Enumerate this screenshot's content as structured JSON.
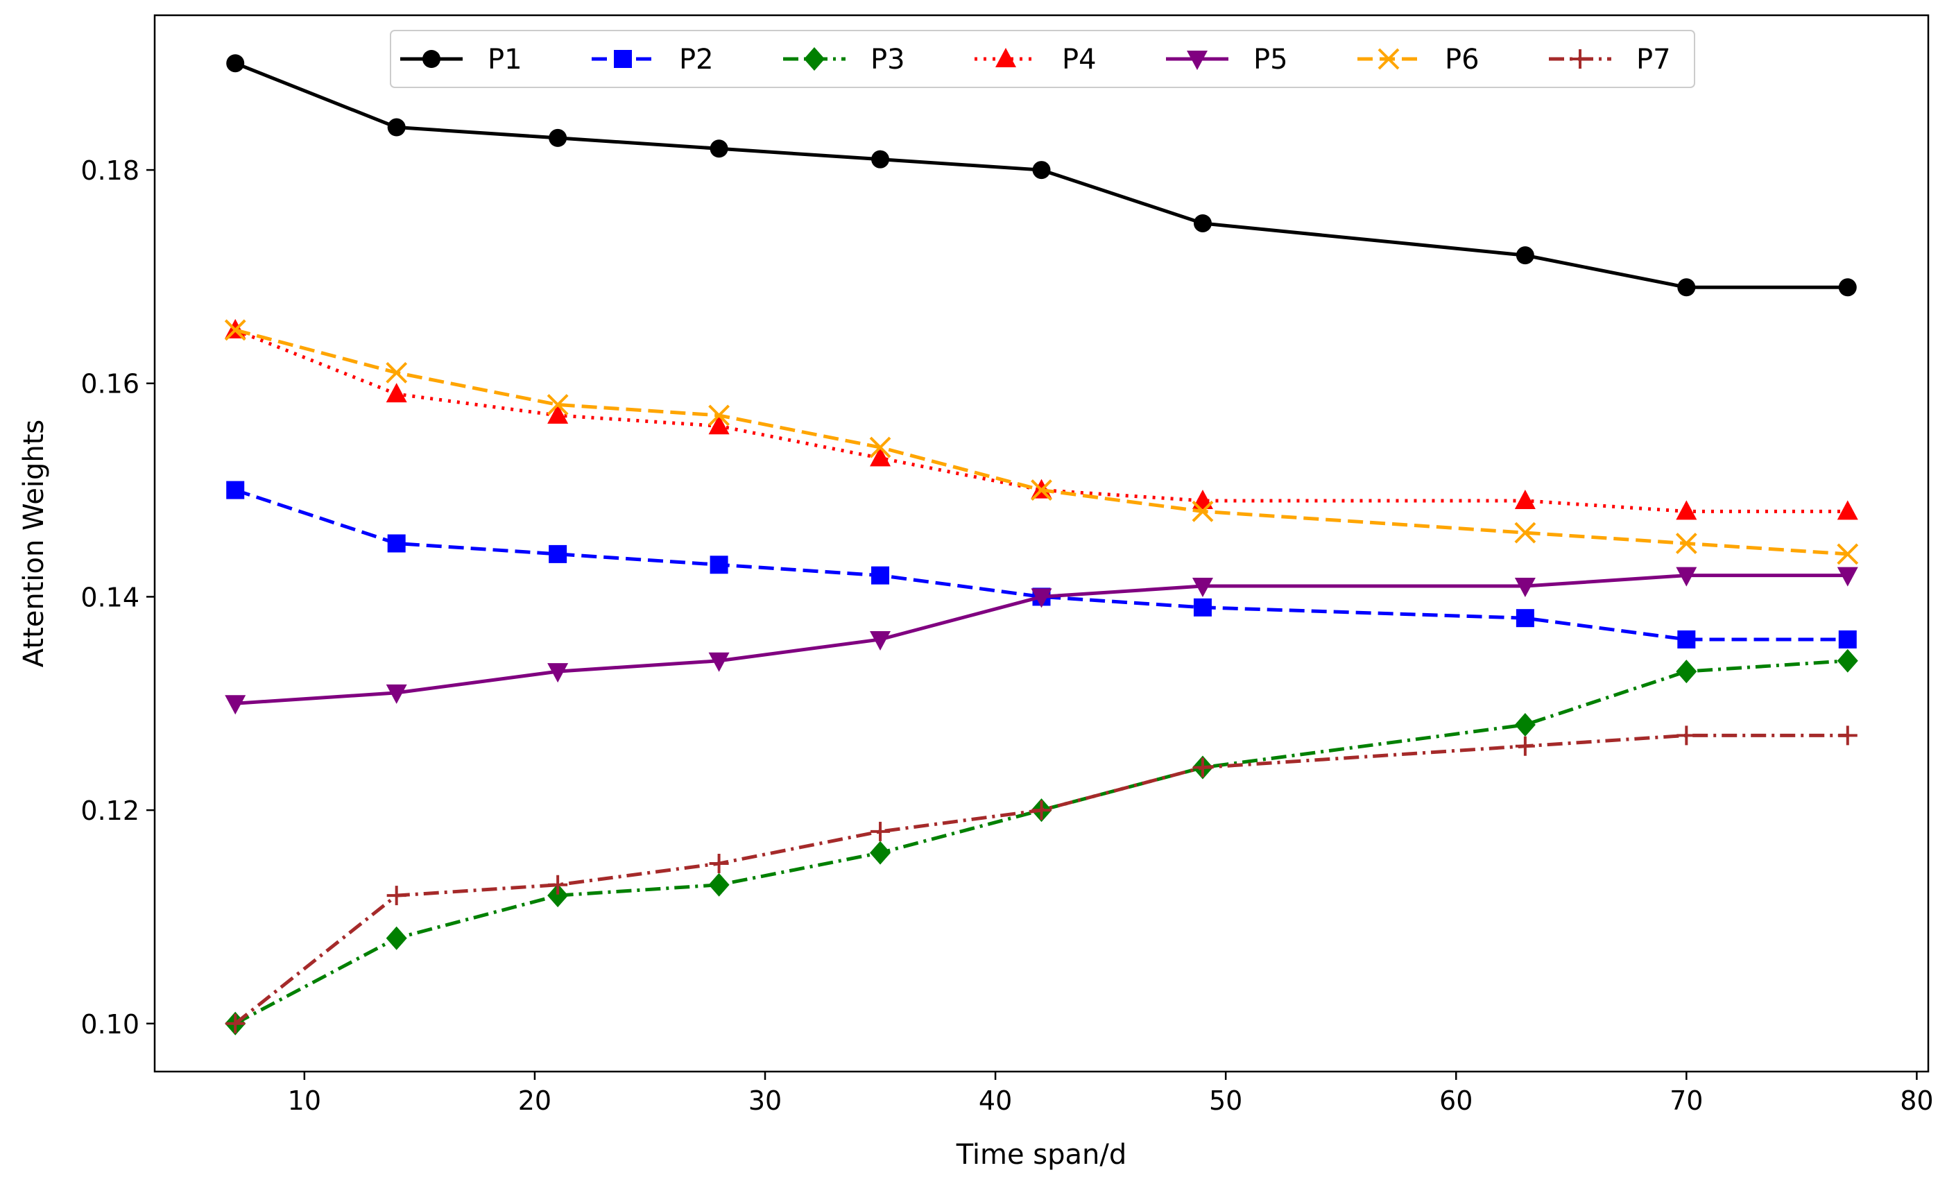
{
  "chart_data": {
    "type": "line",
    "title": "",
    "xlabel": "Time span/d",
    "ylabel": "Attention Weights",
    "xlim": [
      3.5,
      80.5
    ],
    "ylim": [
      0.0955,
      0.1945
    ],
    "xticks": [
      10,
      20,
      30,
      40,
      50,
      60,
      70,
      80
    ],
    "yticks": [
      0.1,
      0.12,
      0.14,
      0.16,
      0.18
    ],
    "xtick_labels": [
      "10",
      "20",
      "30",
      "40",
      "50",
      "60",
      "70",
      "80"
    ],
    "ytick_labels": [
      "0.10",
      "0.12",
      "0.14",
      "0.16",
      "0.18"
    ],
    "grid": false,
    "legend_position": "top-center",
    "x": [
      7,
      14,
      21,
      28,
      35,
      42,
      49,
      63,
      70,
      77
    ],
    "series": [
      {
        "name": "P1",
        "color": "#000000",
        "dash": "solid",
        "marker": "circle",
        "values": [
          0.19,
          0.184,
          0.183,
          0.182,
          0.181,
          0.18,
          0.175,
          0.172,
          0.169,
          0.169
        ]
      },
      {
        "name": "P2",
        "color": "#0000ff",
        "dash": "dashed",
        "marker": "square",
        "values": [
          0.15,
          0.145,
          0.144,
          0.143,
          0.142,
          0.14,
          0.139,
          0.138,
          0.136,
          0.136
        ]
      },
      {
        "name": "P3",
        "color": "#008000",
        "dash": "dashdot",
        "marker": "diamond",
        "values": [
          0.1,
          0.108,
          0.112,
          0.113,
          0.116,
          0.12,
          0.124,
          0.128,
          0.133,
          0.134
        ]
      },
      {
        "name": "P4",
        "color": "#ff0000",
        "dash": "dotted",
        "marker": "triangle-up",
        "values": [
          0.165,
          0.159,
          0.157,
          0.156,
          0.153,
          0.15,
          0.149,
          0.149,
          0.148,
          0.148
        ]
      },
      {
        "name": "P5",
        "color": "#800080",
        "dash": "solid",
        "marker": "triangle-down",
        "values": [
          0.13,
          0.131,
          0.133,
          0.134,
          0.136,
          0.14,
          0.141,
          0.141,
          0.142,
          0.142
        ]
      },
      {
        "name": "P6",
        "color": "#ffa500",
        "dash": "dashed",
        "marker": "x",
        "values": [
          0.165,
          0.161,
          0.158,
          0.157,
          0.154,
          0.15,
          0.148,
          0.146,
          0.145,
          0.144
        ]
      },
      {
        "name": "P7",
        "color": "#a52a2a",
        "dash": "dashdot",
        "marker": "plus",
        "values": [
          0.1,
          0.112,
          0.113,
          0.115,
          0.118,
          0.12,
          0.124,
          0.126,
          0.127,
          0.127
        ]
      }
    ]
  }
}
